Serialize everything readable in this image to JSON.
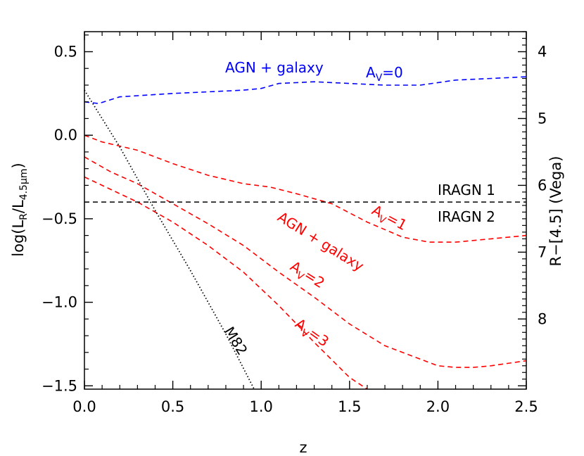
{
  "chart_data": {
    "type": "line",
    "xlabel": "z",
    "ylabel_left": {
      "main": "log(L",
      "sub1": "R",
      "mid": "/L",
      "sub2": "4.5μm",
      "close": ")"
    },
    "ylabel_right": "R−[4.5] (Vega)",
    "xlim": [
      0,
      2.5
    ],
    "ylim": [
      -1.52,
      0.62
    ],
    "x_ticks": [
      {
        "value": 0.0,
        "label": "0.0"
      },
      {
        "value": 0.5,
        "label": "0.5"
      },
      {
        "value": 1.0,
        "label": "1.0"
      },
      {
        "value": 1.5,
        "label": "1.5"
      },
      {
        "value": 2.0,
        "label": "2.0"
      },
      {
        "value": 2.5,
        "label": "2.5"
      }
    ],
    "y_ticks": [
      {
        "value": 0.5,
        "label": "0.5"
      },
      {
        "value": 0.0,
        "label": "0.0"
      },
      {
        "value": -0.5,
        "label": "−0.5"
      },
      {
        "value": -1.0,
        "label": "−1.0"
      },
      {
        "value": -1.5,
        "label": "−1.5"
      }
    ],
    "y2_ticks": [
      {
        "value": 4,
        "label": "4"
      },
      {
        "value": 5,
        "label": "5"
      },
      {
        "value": 6,
        "label": "6"
      },
      {
        "value": 7,
        "label": "7"
      },
      {
        "value": 8,
        "label": "8"
      }
    ],
    "y2_relation": "y = 2.1 - 0.4 * (R-[4.5])",
    "series": [
      {
        "key": "av0",
        "style": "dashed",
        "color": "#0000ff",
        "x": [
          0,
          0.08,
          0.2,
          0.35,
          0.5,
          0.7,
          0.9,
          1.0,
          1.1,
          1.3,
          1.5,
          1.7,
          1.9,
          2.1,
          2.3,
          2.5
        ],
        "y": [
          0.2,
          0.19,
          0.23,
          0.24,
          0.25,
          0.26,
          0.27,
          0.28,
          0.31,
          0.32,
          0.31,
          0.3,
          0.3,
          0.33,
          0.34,
          0.35
        ]
      },
      {
        "key": "av1",
        "style": "dashed",
        "color": "#ff0000",
        "x": [
          0,
          0.1,
          0.3,
          0.5,
          0.7,
          0.9,
          1.05,
          1.2,
          1.4,
          1.6,
          1.8,
          1.95,
          2.1,
          2.3,
          2.5
        ],
        "y": [
          0.0,
          -0.04,
          -0.09,
          -0.17,
          -0.24,
          -0.29,
          -0.31,
          -0.35,
          -0.41,
          -0.52,
          -0.61,
          -0.64,
          -0.64,
          -0.62,
          -0.6
        ]
      },
      {
        "key": "av2",
        "style": "dashed",
        "color": "#ff0000",
        "x": [
          0,
          0.15,
          0.3,
          0.5,
          0.7,
          0.9,
          1.1,
          1.3,
          1.5,
          1.7,
          1.9,
          2.0,
          2.1,
          2.2,
          2.3,
          2.5
        ],
        "y": [
          -0.13,
          -0.22,
          -0.29,
          -0.41,
          -0.53,
          -0.66,
          -0.82,
          -0.97,
          -1.13,
          -1.26,
          -1.34,
          -1.38,
          -1.39,
          -1.39,
          -1.38,
          -1.35
        ]
      },
      {
        "key": "av3",
        "style": "dashed",
        "color": "#ff0000",
        "x": [
          0,
          0.1,
          0.3,
          0.5,
          0.7,
          0.9,
          1.1,
          1.3,
          1.5,
          1.6
        ],
        "y": [
          -0.25,
          -0.3,
          -0.4,
          -0.52,
          -0.66,
          -0.82,
          -1.02,
          -1.24,
          -1.45,
          -1.52
        ]
      },
      {
        "key": "m82",
        "style": "dotted",
        "color": "#000000",
        "x": [
          0,
          0.2,
          0.4,
          0.6,
          0.8,
          0.96
        ],
        "y": [
          0.27,
          -0.07,
          -0.45,
          -0.81,
          -1.19,
          -1.52
        ]
      }
    ],
    "threshold": {
      "y": -0.4,
      "style": "dashed",
      "color": "#000000"
    },
    "annotations": {
      "iragn1": "IRAGN 1",
      "iragn2": "IRAGN 2",
      "m82": "M82",
      "agn_galaxy_blue": "AGN + galaxy",
      "agn_galaxy_red": "AGN + galaxy",
      "av_letter": "A",
      "av_sub": "V",
      "av0_val": "=0",
      "av1_val": "=1",
      "av2_val": "=2",
      "av3_val": "=3"
    },
    "colors": {
      "blue": "#0000ff",
      "red": "#ff0000",
      "black": "#000000"
    }
  }
}
